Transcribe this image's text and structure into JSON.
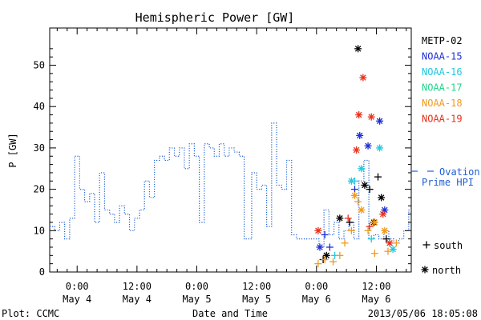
{
  "chart_data": {
    "type": "scatter",
    "title": "Hemispheric Power [GW]",
    "ylabel": "P [GW]",
    "xlabel": "Date and Time",
    "ylim": [
      0,
      59
    ],
    "xlim": [
      "2013-05-03T18:30",
      "2013-05-06T19:00"
    ],
    "grid": false,
    "yticks": [
      0,
      10,
      20,
      30,
      40,
      50
    ],
    "xticks": [
      {
        "t": "2013-05-04T00:00",
        "l1": "0:00",
        "l2": "May 4"
      },
      {
        "t": "2013-05-04T12:00",
        "l1": "12:00",
        "l2": "May 4"
      },
      {
        "t": "2013-05-05T00:00",
        "l1": "0:00",
        "l2": "May 5"
      },
      {
        "t": "2013-05-05T12:00",
        "l1": "12:00",
        "l2": "May 5"
      },
      {
        "t": "2013-05-06T00:00",
        "l1": "0:00",
        "l2": "May 6"
      },
      {
        "t": "2013-05-06T12:00",
        "l1": "12:00",
        "l2": "May 6"
      }
    ],
    "legend": {
      "placement": "right",
      "satellites": [
        {
          "name": "METP-02",
          "color": "#000000"
        },
        {
          "name": "NOAA-15",
          "color": "#1f2fd6"
        },
        {
          "name": "NOAA-16",
          "color": "#22c8e0"
        },
        {
          "name": "NOAA-17",
          "color": "#22d68a"
        },
        {
          "name": "NOAA-18",
          "color": "#f29a1e"
        },
        {
          "name": "NOAA-19",
          "color": "#e8321c"
        }
      ],
      "ovation_line1": "Ovation",
      "ovation_line2": "Prime HPI",
      "ovation_color": "#1f5fd6",
      "south_label": "south",
      "north_label": "north"
    },
    "ovation_step": [
      [
        "2013-05-03T18:30",
        11
      ],
      [
        "2013-05-03T19:30",
        10
      ],
      [
        "2013-05-03T20:30",
        12
      ],
      [
        "2013-05-03T21:30",
        8
      ],
      [
        "2013-05-03T22:30",
        13
      ],
      [
        "2013-05-03T23:30",
        28
      ],
      [
        "2013-05-04T00:30",
        20
      ],
      [
        "2013-05-04T01:30",
        17
      ],
      [
        "2013-05-04T02:30",
        19
      ],
      [
        "2013-05-04T03:30",
        12
      ],
      [
        "2013-05-04T04:30",
        24
      ],
      [
        "2013-05-04T05:30",
        15
      ],
      [
        "2013-05-04T06:30",
        14
      ],
      [
        "2013-05-04T07:30",
        12
      ],
      [
        "2013-05-04T08:30",
        16
      ],
      [
        "2013-05-04T09:30",
        14
      ],
      [
        "2013-05-04T10:30",
        10
      ],
      [
        "2013-05-04T11:30",
        13
      ],
      [
        "2013-05-04T12:30",
        15
      ],
      [
        "2013-05-04T13:30",
        22
      ],
      [
        "2013-05-04T14:30",
        18
      ],
      [
        "2013-05-04T15:30",
        27
      ],
      [
        "2013-05-04T16:30",
        28
      ],
      [
        "2013-05-04T17:30",
        27
      ],
      [
        "2013-05-04T18:30",
        30
      ],
      [
        "2013-05-04T19:30",
        28
      ],
      [
        "2013-05-04T20:30",
        30
      ],
      [
        "2013-05-04T21:30",
        25
      ],
      [
        "2013-05-04T22:30",
        31
      ],
      [
        "2013-05-04T23:30",
        28
      ],
      [
        "2013-05-05T00:30",
        12
      ],
      [
        "2013-05-05T01:30",
        31
      ],
      [
        "2013-05-05T02:30",
        30
      ],
      [
        "2013-05-05T03:30",
        28
      ],
      [
        "2013-05-05T04:30",
        31
      ],
      [
        "2013-05-05T05:30",
        28
      ],
      [
        "2013-05-05T06:30",
        30
      ],
      [
        "2013-05-05T07:30",
        29
      ],
      [
        "2013-05-05T08:30",
        28
      ],
      [
        "2013-05-05T09:30",
        8
      ],
      [
        "2013-05-05T11:00",
        24
      ],
      [
        "2013-05-05T12:00",
        20
      ],
      [
        "2013-05-05T13:00",
        21
      ],
      [
        "2013-05-05T14:00",
        11
      ],
      [
        "2013-05-05T15:00",
        36
      ],
      [
        "2013-05-05T16:00",
        21
      ],
      [
        "2013-05-05T17:00",
        20
      ],
      [
        "2013-05-05T18:00",
        27
      ],
      [
        "2013-05-05T19:00",
        9
      ],
      [
        "2013-05-05T20:00",
        8
      ],
      [
        "2013-05-05T21:00",
        8
      ],
      [
        "2013-05-05T22:00",
        8
      ],
      [
        "2013-05-05T23:00",
        8
      ],
      [
        "2013-05-06T00:30",
        6
      ],
      [
        "2013-05-06T01:30",
        15
      ],
      [
        "2013-05-06T02:30",
        9
      ],
      [
        "2013-05-06T03:30",
        12
      ],
      [
        "2013-05-06T04:30",
        8
      ],
      [
        "2013-05-06T05:30",
        10
      ],
      [
        "2013-05-06T06:30",
        12
      ],
      [
        "2013-05-06T07:30",
        8
      ],
      [
        "2013-05-06T08:30",
        22
      ],
      [
        "2013-05-06T09:30",
        27
      ],
      [
        "2013-05-06T10:30",
        8
      ],
      [
        "2013-05-06T11:30",
        9
      ],
      [
        "2013-05-06T12:30",
        8
      ],
      [
        "2013-05-06T13:30",
        10
      ],
      [
        "2013-05-06T14:30",
        8
      ],
      [
        "2013-05-06T15:30",
        7
      ],
      [
        "2013-05-06T16:30",
        8
      ],
      [
        "2013-05-06T17:30",
        10
      ],
      [
        "2013-05-06T18:30",
        15
      ],
      [
        "2013-05-06T19:00",
        15
      ]
    ],
    "points": [
      {
        "t": "2013-05-06T08:20",
        "v": 54,
        "sat": "METP-02",
        "hemi": "north"
      },
      {
        "t": "2013-05-06T09:40",
        "v": 21,
        "sat": "METP-02",
        "hemi": "north"
      },
      {
        "t": "2013-05-06T11:30",
        "v": 12,
        "sat": "METP-02",
        "hemi": "north"
      },
      {
        "t": "2013-05-06T13:00",
        "v": 18,
        "sat": "METP-02",
        "hemi": "north"
      },
      {
        "t": "2013-05-06T04:40",
        "v": 13,
        "sat": "METP-02",
        "hemi": "north"
      },
      {
        "t": "2013-05-06T02:00",
        "v": 4,
        "sat": "METP-02",
        "hemi": "north"
      },
      {
        "t": "2013-05-06T10:40",
        "v": 20,
        "sat": "METP-02",
        "hemi": "south"
      },
      {
        "t": "2013-05-06T12:20",
        "v": 23,
        "sat": "METP-02",
        "hemi": "south"
      },
      {
        "t": "2013-05-06T14:00",
        "v": 8,
        "sat": "METP-02",
        "hemi": "south"
      },
      {
        "t": "2013-05-06T01:20",
        "v": 3,
        "sat": "METP-02",
        "hemi": "south"
      },
      {
        "t": "2013-05-06T06:40",
        "v": 12,
        "sat": "METP-02",
        "hemi": "south"
      },
      {
        "t": "2013-05-06T08:40",
        "v": 33,
        "sat": "NOAA-15",
        "hemi": "north"
      },
      {
        "t": "2013-05-06T10:20",
        "v": 30.5,
        "sat": "NOAA-15",
        "hemi": "north"
      },
      {
        "t": "2013-05-06T12:40",
        "v": 36.5,
        "sat": "NOAA-15",
        "hemi": "north"
      },
      {
        "t": "2013-05-06T00:40",
        "v": 6,
        "sat": "NOAA-15",
        "hemi": "north"
      },
      {
        "t": "2013-05-06T13:40",
        "v": 15,
        "sat": "NOAA-15",
        "hemi": "north"
      },
      {
        "t": "2013-05-06T01:40",
        "v": 9,
        "sat": "NOAA-15",
        "hemi": "south"
      },
      {
        "t": "2013-05-06T02:40",
        "v": 6,
        "sat": "NOAA-15",
        "hemi": "south"
      },
      {
        "t": "2013-05-06T07:40",
        "v": 20,
        "sat": "NOAA-15",
        "hemi": "south"
      },
      {
        "t": "2013-05-06T09:00",
        "v": 25,
        "sat": "NOAA-16",
        "hemi": "north"
      },
      {
        "t": "2013-05-06T12:40",
        "v": 30,
        "sat": "NOAA-16",
        "hemi": "north"
      },
      {
        "t": "2013-05-06T07:00",
        "v": 22,
        "sat": "NOAA-16",
        "hemi": "north"
      },
      {
        "t": "2013-05-06T15:20",
        "v": 5.5,
        "sat": "NOAA-16",
        "hemi": "north"
      },
      {
        "t": "2013-05-06T03:40",
        "v": 4,
        "sat": "NOAA-16",
        "hemi": "south"
      },
      {
        "t": "2013-05-06T07:40",
        "v": 22,
        "sat": "NOAA-16",
        "hemi": "south"
      },
      {
        "t": "2013-05-06T11:00",
        "v": 8,
        "sat": "NOAA-16",
        "hemi": "south"
      },
      {
        "t": "2013-05-06T08:00",
        "v": 29.5,
        "sat": "NOAA-19",
        "hemi": "north"
      },
      {
        "t": "2013-05-06T08:30",
        "v": 38,
        "sat": "NOAA-19",
        "hemi": "north"
      },
      {
        "t": "2013-05-06T09:20",
        "v": 47,
        "sat": "NOAA-19",
        "hemi": "north"
      },
      {
        "t": "2013-05-06T11:00",
        "v": 37.5,
        "sat": "NOAA-19",
        "hemi": "north"
      },
      {
        "t": "2013-05-06T00:20",
        "v": 10,
        "sat": "NOAA-19",
        "hemi": "north"
      },
      {
        "t": "2013-05-06T13:20",
        "v": 14,
        "sat": "NOAA-19",
        "hemi": "north"
      },
      {
        "t": "2013-05-06T14:40",
        "v": 7,
        "sat": "NOAA-19",
        "hemi": "north"
      },
      {
        "t": "2013-05-06T06:20",
        "v": 13,
        "sat": "NOAA-19",
        "hemi": "south"
      },
      {
        "t": "2013-05-06T10:40",
        "v": 11,
        "sat": "NOAA-19",
        "hemi": "south"
      },
      {
        "t": "2013-05-06T07:40",
        "v": 18.5,
        "sat": "NOAA-18",
        "hemi": "north"
      },
      {
        "t": "2013-05-06T09:00",
        "v": 15,
        "sat": "NOAA-18",
        "hemi": "north"
      },
      {
        "t": "2013-05-06T11:40",
        "v": 12,
        "sat": "NOAA-18",
        "hemi": "north"
      },
      {
        "t": "2013-05-06T13:40",
        "v": 10,
        "sat": "NOAA-18",
        "hemi": "north"
      },
      {
        "t": "2013-05-06T00:20",
        "v": 2,
        "sat": "NOAA-18",
        "hemi": "south"
      },
      {
        "t": "2013-05-06T01:40",
        "v": 3,
        "sat": "NOAA-18",
        "hemi": "south"
      },
      {
        "t": "2013-05-06T03:20",
        "v": 2.5,
        "sat": "NOAA-18",
        "hemi": "south"
      },
      {
        "t": "2013-05-06T04:40",
        "v": 4,
        "sat": "NOAA-18",
        "hemi": "south"
      },
      {
        "t": "2013-05-06T05:40",
        "v": 7,
        "sat": "NOAA-18",
        "hemi": "south"
      },
      {
        "t": "2013-05-06T07:00",
        "v": 10,
        "sat": "NOAA-18",
        "hemi": "south"
      },
      {
        "t": "2013-05-06T08:20",
        "v": 17,
        "sat": "NOAA-18",
        "hemi": "south"
      },
      {
        "t": "2013-05-06T10:20",
        "v": 10,
        "sat": "NOAA-18",
        "hemi": "south"
      },
      {
        "t": "2013-05-06T11:40",
        "v": 4.5,
        "sat": "NOAA-18",
        "hemi": "south"
      },
      {
        "t": "2013-05-06T14:20",
        "v": 5,
        "sat": "NOAA-18",
        "hemi": "south"
      },
      {
        "t": "2013-05-06T16:00",
        "v": 7,
        "sat": "NOAA-18",
        "hemi": "south"
      }
    ]
  },
  "footer": {
    "left": "Plot: CCMC",
    "timestamp": "2013/05/06 18:05:08"
  }
}
